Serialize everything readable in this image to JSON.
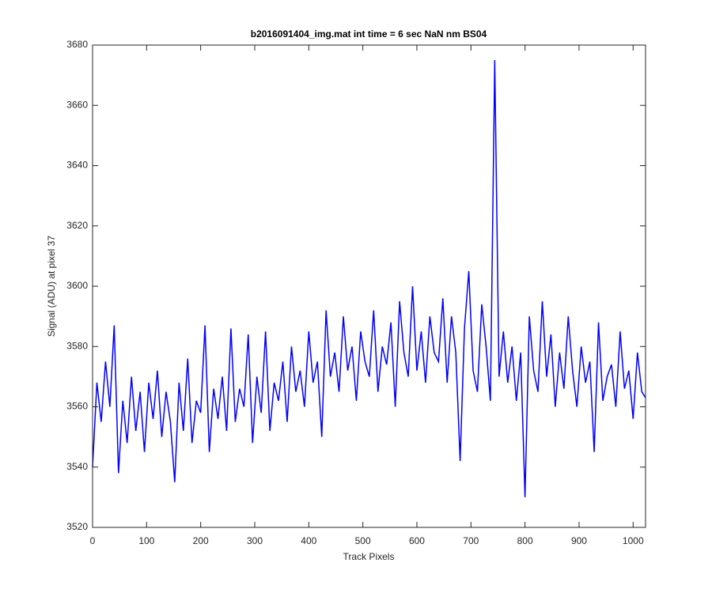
{
  "chart_data": {
    "type": "line",
    "title": "b2016091404_img.mat int time = 6 sec  NaN nm BS04",
    "x_label": "Track Pixels",
    "y_label": "Signal (ADU) at pixel 37",
    "xlim": [
      0,
      1023
    ],
    "ylim": [
      3520,
      3680
    ],
    "xticks": [
      0,
      100,
      200,
      300,
      400,
      500,
      600,
      700,
      800,
      900,
      1000
    ],
    "yticks": [
      3520,
      3540,
      3560,
      3580,
      3600,
      3620,
      3640,
      3660,
      3680
    ],
    "x": [
      0,
      8,
      16,
      24,
      32,
      40,
      48,
      56,
      64,
      72,
      80,
      88,
      96,
      104,
      112,
      120,
      128,
      136,
      144,
      152,
      160,
      168,
      176,
      184,
      192,
      200,
      208,
      216,
      224,
      232,
      240,
      248,
      256,
      264,
      272,
      280,
      288,
      296,
      304,
      312,
      320,
      328,
      336,
      344,
      352,
      360,
      368,
      376,
      384,
      392,
      400,
      408,
      416,
      424,
      432,
      440,
      448,
      456,
      464,
      472,
      480,
      488,
      496,
      504,
      512,
      520,
      528,
      536,
      544,
      552,
      560,
      568,
      576,
      584,
      592,
      600,
      608,
      616,
      624,
      632,
      640,
      648,
      656,
      664,
      672,
      680,
      688,
      696,
      704,
      712,
      720,
      728,
      736,
      744,
      752,
      760,
      768,
      776,
      784,
      792,
      800,
      808,
      816,
      824,
      832,
      840,
      848,
      856,
      864,
      872,
      880,
      888,
      896,
      904,
      912,
      920,
      928,
      936,
      944,
      952,
      960,
      968,
      976,
      984,
      992,
      1000,
      1008,
      1016,
      1023
    ],
    "series": [
      {
        "name": "signal",
        "color": "#0000ff",
        "values": [
          3540,
          3568,
          3555,
          3575,
          3560,
          3587,
          3538,
          3562,
          3548,
          3570,
          3552,
          3565,
          3545,
          3568,
          3556,
          3572,
          3550,
          3565,
          3555,
          3535,
          3568,
          3552,
          3576,
          3548,
          3562,
          3558,
          3587,
          3545,
          3566,
          3556,
          3570,
          3552,
          3586,
          3555,
          3566,
          3560,
          3584,
          3548,
          3570,
          3558,
          3585,
          3552,
          3568,
          3562,
          3575,
          3555,
          3580,
          3565,
          3572,
          3560,
          3585,
          3568,
          3575,
          3550,
          3592,
          3570,
          3578,
          3565,
          3590,
          3572,
          3580,
          3562,
          3585,
          3575,
          3570,
          3592,
          3565,
          3580,
          3574,
          3588,
          3560,
          3595,
          3578,
          3570,
          3600,
          3572,
          3585,
          3568,
          3590,
          3578,
          3575,
          3596,
          3568,
          3590,
          3578,
          3542,
          3586,
          3605,
          3572,
          3565,
          3594,
          3580,
          3562,
          3675,
          3570,
          3585,
          3568,
          3580,
          3562,
          3578,
          3530,
          3590,
          3572,
          3565,
          3595,
          3570,
          3584,
          3560,
          3578,
          3566,
          3590,
          3572,
          3560,
          3580,
          3568,
          3575,
          3545,
          3588,
          3562,
          3570,
          3574,
          3560,
          3585,
          3566,
          3572,
          3556,
          3578,
          3565,
          3563
        ]
      }
    ]
  }
}
